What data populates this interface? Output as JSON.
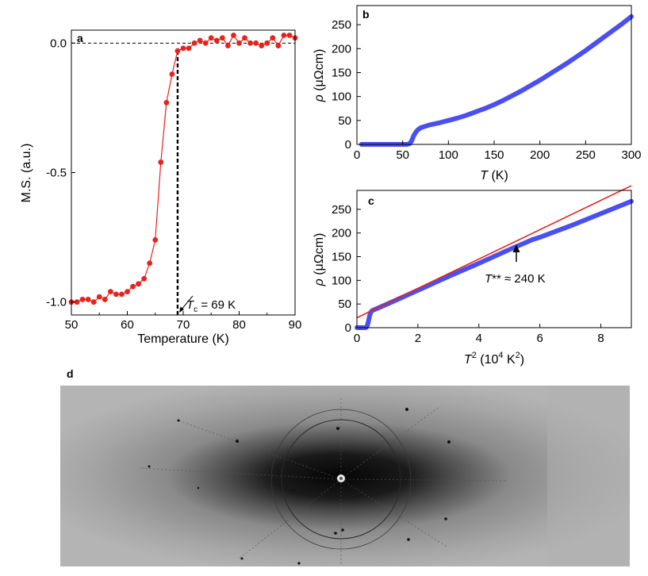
{
  "chart_data": [
    {
      "panel": "a",
      "type": "line",
      "xlabel": "Temperature (K)",
      "ylabel": "M.S. (a.u.)",
      "xlim": [
        50,
        90
      ],
      "ylim": [
        -1.05,
        0.05
      ],
      "xticks": [
        50,
        60,
        70,
        80,
        90
      ],
      "yticks": [
        0.0,
        -0.5,
        -1.0
      ],
      "ytick_labels": [
        "0.0",
        "-0.5",
        "-1.0"
      ],
      "series": [
        {
          "color": "#e8221c",
          "marker": "circle",
          "x": [
            50,
            51,
            52,
            53,
            54,
            55,
            56,
            57,
            58,
            59,
            60,
            61,
            62,
            63,
            64,
            65,
            66,
            67,
            68,
            69,
            70,
            71,
            72,
            73,
            74,
            75,
            76,
            77,
            78,
            79,
            80,
            81,
            82,
            83,
            84,
            85,
            86,
            87,
            88,
            89,
            90
          ],
          "y": [
            -1.0,
            -1.0,
            -0.99,
            -0.99,
            -1.0,
            -0.98,
            -0.99,
            -0.96,
            -0.97,
            -0.97,
            -0.96,
            -0.94,
            -0.93,
            -0.91,
            -0.85,
            -0.76,
            -0.46,
            -0.23,
            -0.12,
            -0.03,
            -0.02,
            -0.02,
            0.0,
            0.01,
            0.0,
            0.02,
            0.01,
            0.02,
            -0.01,
            0.03,
            0.0,
            0.02,
            0.0,
            0.0,
            -0.01,
            0.0,
            0.02,
            -0.01,
            0.03,
            0.03,
            0.02
          ]
        }
      ],
      "reference_lines": {
        "hline_y": 0.0,
        "vline_x": 69
      },
      "annotation": {
        "symbol": "T",
        "subscript": "c",
        "text": " = 69 K",
        "x": 69,
        "y": -1.0
      }
    },
    {
      "panel": "b",
      "type": "line",
      "xlabel_symbol": "T",
      "xlabel_unit": " (K)",
      "ylabel_symbol": "ρ",
      "ylabel_unit": " (μΩcm)",
      "xlim": [
        0,
        300
      ],
      "ylim": [
        0,
        290
      ],
      "xticks": [
        0,
        50,
        100,
        150,
        200,
        250,
        300
      ],
      "yticks": [
        0,
        50,
        100,
        150,
        200,
        250
      ],
      "series": [
        {
          "color": "#4a50f0",
          "x": [
            5,
            20,
            40,
            55,
            58,
            60,
            62,
            65,
            67,
            70,
            75,
            80,
            90,
            100,
            110,
            120,
            130,
            140,
            150,
            160,
            170,
            180,
            190,
            200,
            210,
            220,
            230,
            240,
            250,
            260,
            270,
            280,
            290,
            300
          ],
          "y": [
            0,
            0,
            0,
            0,
            2,
            8,
            18,
            27,
            31,
            35,
            38,
            41,
            45,
            50,
            55,
            61,
            68,
            75,
            83,
            92,
            102,
            112,
            123,
            134,
            146,
            158,
            170,
            183,
            196,
            210,
            224,
            238,
            252,
            267
          ]
        }
      ]
    },
    {
      "panel": "c",
      "type": "line",
      "xlabel_symbol": "T",
      "xlabel_sup": "2",
      "xlabel_unit_pre": " (10",
      "xlabel_unit_sup1": "4",
      "xlabel_unit_mid": " K",
      "xlabel_unit_sup2": "2",
      "xlabel_unit_post": ")",
      "ylabel_symbol": "ρ",
      "ylabel_unit": " (μΩcm)",
      "xlim": [
        0,
        9
      ],
      "ylim": [
        0,
        290
      ],
      "xticks": [
        0,
        2,
        4,
        6,
        8
      ],
      "yticks": [
        0,
        50,
        100,
        150,
        200,
        250
      ],
      "series": [
        {
          "color": "#4a50f0",
          "x": [
            0.0,
            0.2,
            0.3,
            0.34,
            0.38,
            0.42,
            0.46,
            0.5,
            1,
            2,
            3,
            4,
            5,
            5.76,
            6,
            7,
            8,
            9
          ],
          "y": [
            0,
            0,
            0,
            4,
            14,
            26,
            33,
            36,
            50,
            79,
            108,
            136,
            165,
            186,
            191,
            215,
            241,
            267
          ]
        },
        {
          "color": "#e8221c",
          "x": [
            0,
            9
          ],
          "y": [
            21,
            300
          ]
        }
      ],
      "annotation": {
        "symbol": "T",
        "text": "** ≈ 240 K",
        "x": 5.76,
        "y": 165
      }
    }
  ],
  "panel_d": {
    "letter": "d",
    "description_free": true
  },
  "labels": {
    "a": "a",
    "b": "b",
    "c": "c"
  }
}
